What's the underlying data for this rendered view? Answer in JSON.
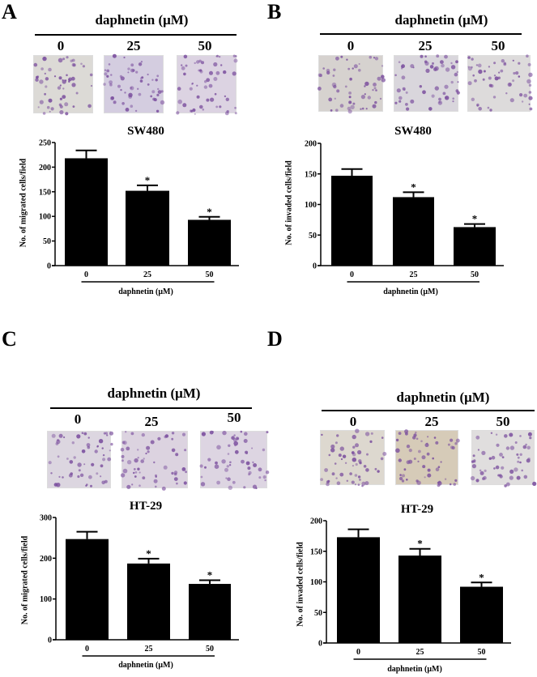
{
  "figure": {
    "panels": [
      {
        "letter": "A",
        "treatment_title": "daphnetin (μM)",
        "concentrations": [
          "0",
          "25",
          "50"
        ],
        "micrograph_tints": [
          "#dcdad6",
          "#d4cde0",
          "#dcd3e2"
        ]
      },
      {
        "letter": "B",
        "treatment_title": "daphnetin (μM)",
        "concentrations": [
          "0",
          "25",
          "50"
        ],
        "micrograph_tints": [
          "#d6d2cf",
          "#d9d6dc",
          "#dddbdb"
        ]
      },
      {
        "letter": "C",
        "treatment_title": "daphnetin (μM)",
        "concentrations": [
          "0",
          "25",
          "50"
        ],
        "micrograph_tints": [
          "#dcd6e0",
          "#dcd3e0",
          "#ddd5e2"
        ]
      },
      {
        "letter": "D",
        "treatment_title": "daphnetin (μM)",
        "concentrations": [
          "0",
          "25",
          "50"
        ],
        "micrograph_tints": [
          "#ddd8cf",
          "#d6cbb8",
          "#e0dede"
        ]
      }
    ],
    "colors": {
      "bar": "#000000",
      "axis": "#000000",
      "cell_stain": "#7b4f9e",
      "background": "#ffffff"
    }
  },
  "chart_data": [
    {
      "panel": "A",
      "type": "bar",
      "title": "SW480",
      "categories": [
        "0",
        "25",
        "50"
      ],
      "values": [
        218,
        152,
        93
      ],
      "error": [
        16,
        11,
        6
      ],
      "significance": [
        "",
        "*",
        "*"
      ],
      "xlabel": "daphnetin (μM)",
      "ylabel": "No. of migrated cells/field",
      "ylim": [
        0,
        250
      ],
      "yticks": [
        "0",
        "50",
        "100",
        "150",
        "200",
        "250"
      ],
      "grid": false
    },
    {
      "panel": "B",
      "type": "bar",
      "title": "SW480",
      "categories": [
        "0",
        "25",
        "50"
      ],
      "values": [
        147,
        112,
        63
      ],
      "error": [
        11,
        8,
        5
      ],
      "significance": [
        "",
        "*",
        "*"
      ],
      "xlabel": "daphnetin (μM)",
      "ylabel": "No. of invaded cells/field",
      "ylim": [
        0,
        200
      ],
      "yticks": [
        "0",
        "50",
        "100",
        "150",
        "200"
      ],
      "grid": false
    },
    {
      "panel": "C",
      "type": "bar",
      "title": "HT-29",
      "categories": [
        "0",
        "25",
        "50"
      ],
      "values": [
        247,
        187,
        137
      ],
      "error": [
        18,
        12,
        9
      ],
      "significance": [
        "",
        "*",
        "*"
      ],
      "xlabel": "daphnetin (μM)",
      "ylabel": "No. of migrated cells/field",
      "ylim": [
        0,
        300
      ],
      "yticks": [
        "0",
        "100",
        "200",
        "300"
      ],
      "grid": false
    },
    {
      "panel": "D",
      "type": "bar",
      "title": "HT-29",
      "categories": [
        "0",
        "25",
        "50"
      ],
      "values": [
        173,
        143,
        92
      ],
      "error": [
        13,
        11,
        7
      ],
      "significance": [
        "",
        "*",
        "*"
      ],
      "xlabel": "daphnetin (μM)",
      "ylabel": "No. of invaded cells/field",
      "ylim": [
        0,
        200
      ],
      "yticks": [
        "0",
        "50",
        "100",
        "150",
        "200"
      ],
      "grid": false
    }
  ]
}
